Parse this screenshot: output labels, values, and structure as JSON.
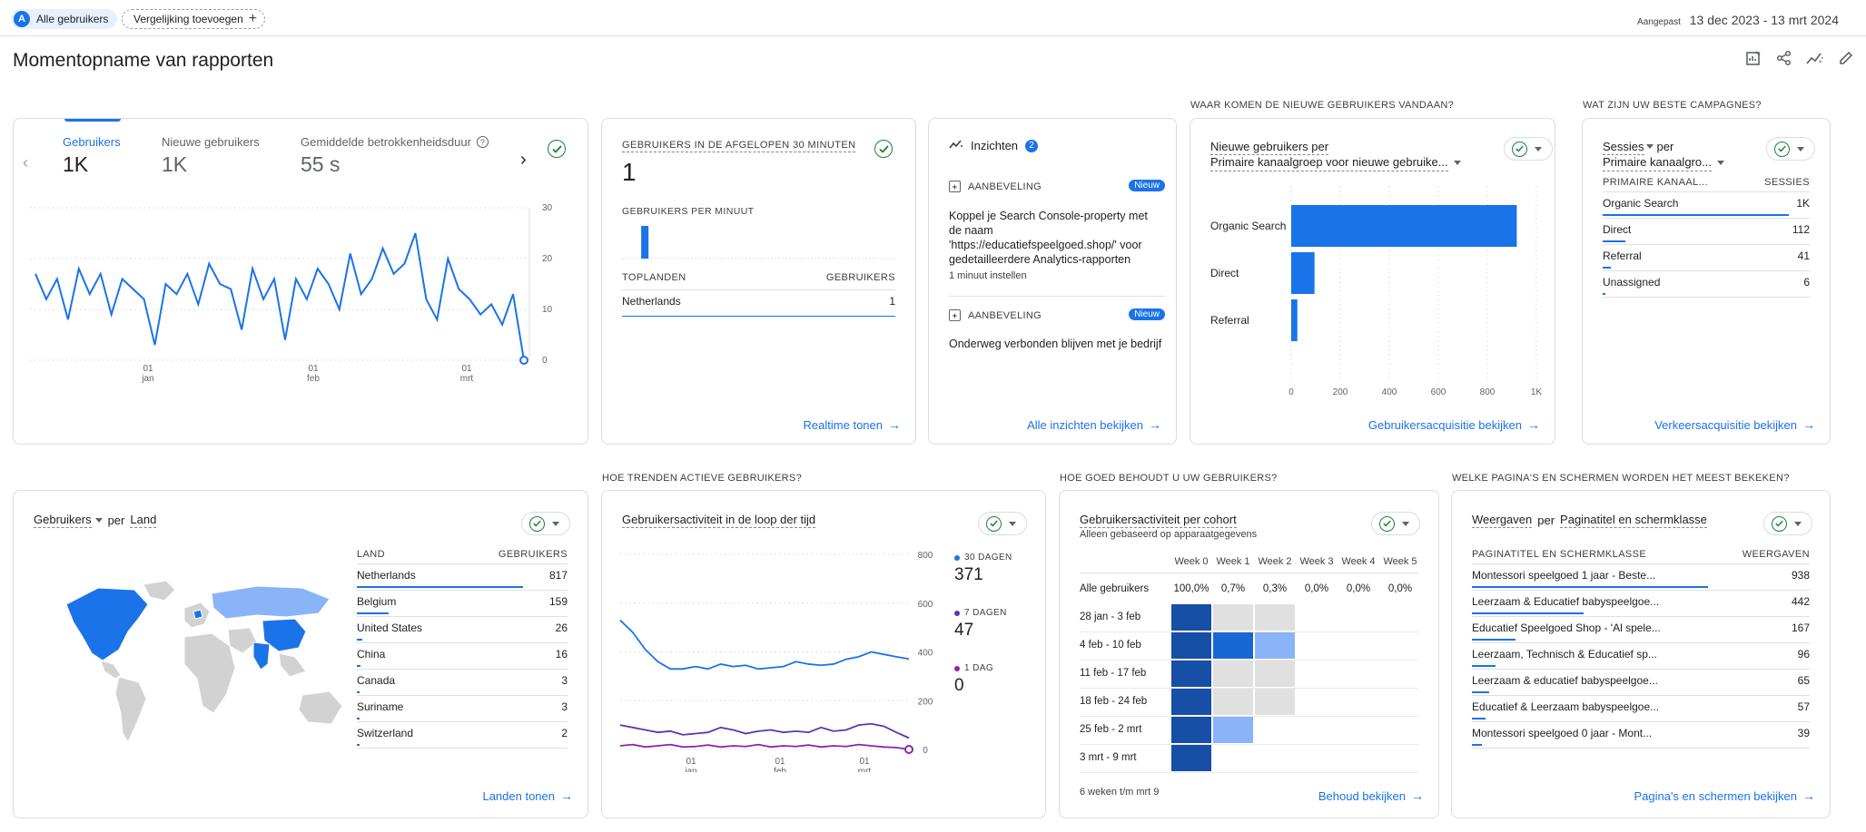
{
  "topbar": {
    "segment_avatar": "A",
    "segment_label": "Alle gebruikers",
    "compare_label": "Vergelijking toevoegen",
    "date_prefix": "Aangepast",
    "date_range": "13 dec 2023 - 13 mrt 2024"
  },
  "page": {
    "title": "Momentopname van rapporten"
  },
  "icons": {
    "customize": "customize-report-icon",
    "share": "share-icon",
    "insights": "insights-trend-icon",
    "edit": "edit-pencil-icon"
  },
  "overview": {
    "tabs": [
      {
        "label": "Gebruikers",
        "value": "1K",
        "active": true
      },
      {
        "label": "Nieuwe gebruikers",
        "value": "1K",
        "active": false
      },
      {
        "label": "Gemiddelde betrokkenheidsduur",
        "value": "55 s",
        "active": false
      }
    ],
    "y_ticks": [
      "30",
      "20",
      "10",
      "0"
    ],
    "x_ticks": [
      {
        "day": "01",
        "month": "jan"
      },
      {
        "day": "01",
        "month": "feb"
      },
      {
        "day": "01",
        "month": "mrt"
      }
    ]
  },
  "realtime": {
    "label": "GEBRUIKERS IN DE AFGELOPEN 30 MINUTEN",
    "value": "1",
    "per_minute_label": "GEBRUIKERS PER MINUUT",
    "table_col1": "TOPLANDEN",
    "table_col2": "GEBRUIKERS",
    "rows": [
      {
        "country": "Netherlands",
        "users": "1"
      }
    ],
    "link": "Realtime tonen"
  },
  "insights": {
    "title": "Inzichten",
    "count": "2",
    "items": [
      {
        "kind": "AANBEVELING",
        "badge": "Nieuw",
        "text": "Koppel je Search Console-property met de naam 'https://educatiefspeelgoed.shop/' voor gedetailleerdere Analytics-rapporten",
        "sub": "1 minuut instellen"
      },
      {
        "kind": "AANBEVELING",
        "badge": "Nieuw",
        "text": "Onderweg verbonden blijven met je bedrijf",
        "sub": ""
      }
    ],
    "link": "Alle inzichten bekijken"
  },
  "acquisition": {
    "section": "WAAR KOMEN DE NIEUWE GEBRUIKERS VANDAAN?",
    "title1": "Nieuwe gebruikers per",
    "title2": "Primaire kanaalgroep voor nieuwe gebruike...",
    "link": "Gebruikersacquisitie bekijken"
  },
  "campaigns": {
    "section": "WAT ZIJN UW BESTE CAMPAGNES?",
    "title1": "Sessies",
    "title1b": "per",
    "title2": "Primaire kanaalgro...",
    "col1": "PRIMAIRE KANAAL...",
    "col2": "SESSIES",
    "rows": [
      {
        "name": "Organic Search",
        "value": "1K",
        "share": 0.9
      },
      {
        "name": "Direct",
        "value": "112",
        "share": 0.11
      },
      {
        "name": "Referral",
        "value": "41",
        "share": 0.04
      },
      {
        "name": "Unassigned",
        "value": "6",
        "share": 0.01
      }
    ],
    "link": "Verkeersacquisitie bekijken"
  },
  "countries": {
    "title1": "Gebruikers",
    "title2": "per",
    "title3": "Land",
    "col1": "LAND",
    "col2": "GEBRUIKERS",
    "rows": [
      {
        "name": "Netherlands",
        "value": "817",
        "share": 0.79
      },
      {
        "name": "Belgium",
        "value": "159",
        "share": 0.15
      },
      {
        "name": "United States",
        "value": "26",
        "share": 0.025
      },
      {
        "name": "China",
        "value": "16",
        "share": 0.016
      },
      {
        "name": "Canada",
        "value": "3",
        "share": 0.005
      },
      {
        "name": "Suriname",
        "value": "3",
        "share": 0.005
      },
      {
        "name": "Switzerland",
        "value": "2",
        "share": 0.004
      }
    ],
    "link": "Landen tonen"
  },
  "activity": {
    "section": "HOE TRENDEN ACTIEVE GEBRUIKERS?",
    "title": "Gebruikersactiviteit in de loop der tijd",
    "y_ticks": [
      "800",
      "600",
      "400",
      "200",
      "0"
    ],
    "x_ticks": [
      {
        "day": "01",
        "month": "jan"
      },
      {
        "day": "01",
        "month": "feb"
      },
      {
        "day": "01",
        "month": "mrt"
      }
    ],
    "legend": [
      {
        "label": "30 DAGEN",
        "value": "371",
        "color": "#1a73e8"
      },
      {
        "label": "7 DAGEN",
        "value": "47",
        "color": "#5e35b1"
      },
      {
        "label": "1 DAG",
        "value": "0",
        "color": "#8e24aa"
      }
    ]
  },
  "retention": {
    "section": "HOE GOED BEHOUDT U UW GEBRUIKERS?",
    "title": "Gebruikersactiviteit per cohort",
    "subtitle": "Alleen gebaseerd op apparaatgegevens",
    "weeks": [
      "Week 0",
      "Week 1",
      "Week 2",
      "Week 3",
      "Week 4",
      "Week 5"
    ],
    "all_label": "Alle gebruikers",
    "all_values": [
      "100,0%",
      "0,7%",
      "0,3%",
      "0,0%",
      "0,0%",
      "0,0%"
    ],
    "cohorts": [
      "28 jan - 3 feb",
      "4 feb - 10 feb",
      "11 feb - 17 feb",
      "18 feb - 24 feb",
      "25 feb - 2 mrt",
      "3 mrt - 9 mrt"
    ],
    "footer": "6 weken t/m mrt 9",
    "link": "Behoud bekijken"
  },
  "pages": {
    "section": "WELKE PAGINA'S EN SCHERMEN WORDEN HET MEEST BEKEKEN?",
    "title1": "Weergaven",
    "title2": "per",
    "title3": "Paginatitel en schermklasse",
    "col1": "PAGINATITEL EN SCHERMKLASSE",
    "col2": "WEERGAVEN",
    "rows": [
      {
        "name": "Montessori speelgoed 1 jaar - Beste...",
        "value": "938",
        "share": 0.7
      },
      {
        "name": "Leerzaam & Educatief babyspeelgoe...",
        "value": "442",
        "share": 0.33
      },
      {
        "name": "Educatief Speelgoed Shop - 'Al spele...",
        "value": "167",
        "share": 0.13
      },
      {
        "name": "Leerzaam, Technisch & Educatief sp...",
        "value": "96",
        "share": 0.07
      },
      {
        "name": "Leerzaam & educatief babyspeelgoe...",
        "value": "65",
        "share": 0.05
      },
      {
        "name": "Educatief & Leerzaam babyspeelgoe...",
        "value": "57",
        "share": 0.04
      },
      {
        "name": "Montessori speelgoed 0 jaar - Mont...",
        "value": "39",
        "share": 0.03
      }
    ],
    "link": "Pagina's en schermen bekijken"
  },
  "chart_data": [
    {
      "type": "line",
      "title": "Gebruikers",
      "x": [
        "2023-12-13",
        "2023-12-15",
        "2023-12-17",
        "2023-12-19",
        "2023-12-21",
        "2023-12-23",
        "2023-12-25",
        "2023-12-27",
        "2023-12-29",
        "2023-12-31",
        "2024-01-02",
        "2024-01-04",
        "2024-01-06",
        "2024-01-08",
        "2024-01-10",
        "2024-01-12",
        "2024-01-14",
        "2024-01-16",
        "2024-01-18",
        "2024-01-20",
        "2024-01-22",
        "2024-01-24",
        "2024-01-26",
        "2024-01-28",
        "2024-01-30",
        "2024-02-01",
        "2024-02-03",
        "2024-02-05",
        "2024-02-07",
        "2024-02-09",
        "2024-02-11",
        "2024-02-13",
        "2024-02-15",
        "2024-02-17",
        "2024-02-19",
        "2024-02-21",
        "2024-02-23",
        "2024-02-25",
        "2024-02-27",
        "2024-02-29",
        "2024-03-02",
        "2024-03-04",
        "2024-03-06",
        "2024-03-08",
        "2024-03-10",
        "2024-03-13"
      ],
      "series": [
        {
          "values": [
            17,
            12,
            16,
            8,
            18,
            13,
            17,
            9,
            16,
            14,
            12,
            3,
            15,
            13,
            17,
            11,
            19,
            15,
            14,
            6,
            18,
            12,
            16,
            4,
            16,
            12,
            18,
            15,
            10,
            21,
            13,
            16,
            22,
            17,
            19,
            25,
            12,
            8,
            20,
            14,
            12,
            9,
            11,
            7,
            13,
            0
          ]
        }
      ],
      "ylim": [
        0,
        30
      ]
    },
    {
      "type": "bar",
      "title": "Gebruikers per minuut",
      "categories": [
        "-30",
        "-29",
        "-28",
        "-27",
        "-26",
        "-25",
        "-24",
        "-23",
        "-22",
        "-21",
        "-20",
        "-19",
        "-18",
        "-17",
        "-16",
        "-15",
        "-14",
        "-13",
        "-12",
        "-11",
        "-10",
        "-9",
        "-8",
        "-7",
        "-6",
        "-5",
        "-4",
        "-3",
        "-2",
        "-1"
      ],
      "values": [
        0,
        0,
        1,
        0,
        0,
        0,
        0,
        0,
        0,
        0,
        0,
        0,
        0,
        0,
        0,
        0,
        0,
        0,
        0,
        0,
        0,
        0,
        0,
        0,
        0,
        0,
        0,
        0,
        0,
        0
      ]
    },
    {
      "type": "bar",
      "title": "Nieuwe gebruikers per Primaire kanaalgroep voor nieuwe gebruike...",
      "categories": [
        "Organic Search",
        "Direct",
        "Referral"
      ],
      "values": [
        920,
        95,
        25
      ],
      "x_ticks": [
        "0",
        "200",
        "400",
        "600",
        "800",
        "1K"
      ],
      "xlim": [
        0,
        1000
      ]
    },
    {
      "type": "line",
      "title": "Gebruikersactiviteit in de loop der tijd",
      "x": [
        "2023-12-13",
        "2023-12-17",
        "2023-12-21",
        "2023-12-25",
        "2023-12-29",
        "2024-01-02",
        "2024-01-06",
        "2024-01-10",
        "2024-01-14",
        "2024-01-18",
        "2024-01-22",
        "2024-01-26",
        "2024-01-30",
        "2024-02-03",
        "2024-02-07",
        "2024-02-11",
        "2024-02-15",
        "2024-02-19",
        "2024-02-23",
        "2024-02-27",
        "2024-03-02",
        "2024-03-06",
        "2024-03-10",
        "2024-03-13"
      ],
      "series": [
        {
          "name": "30 DAGEN",
          "values": [
            530,
            480,
            410,
            360,
            330,
            330,
            340,
            330,
            350,
            340,
            345,
            330,
            335,
            340,
            360,
            350,
            345,
            350,
            370,
            380,
            400,
            390,
            380,
            371
          ]
        },
        {
          "name": "7 DAGEN",
          "values": [
            100,
            90,
            80,
            70,
            75,
            60,
            65,
            70,
            90,
            80,
            65,
            75,
            80,
            70,
            75,
            70,
            90,
            75,
            80,
            100,
            105,
            95,
            70,
            47
          ]
        },
        {
          "name": "1 DAG",
          "values": [
            15,
            20,
            10,
            15,
            20,
            10,
            12,
            18,
            10,
            15,
            12,
            20,
            10,
            15,
            12,
            18,
            10,
            15,
            12,
            20,
            15,
            10,
            8,
            0
          ]
        }
      ],
      "ylim": [
        0,
        800
      ]
    }
  ]
}
